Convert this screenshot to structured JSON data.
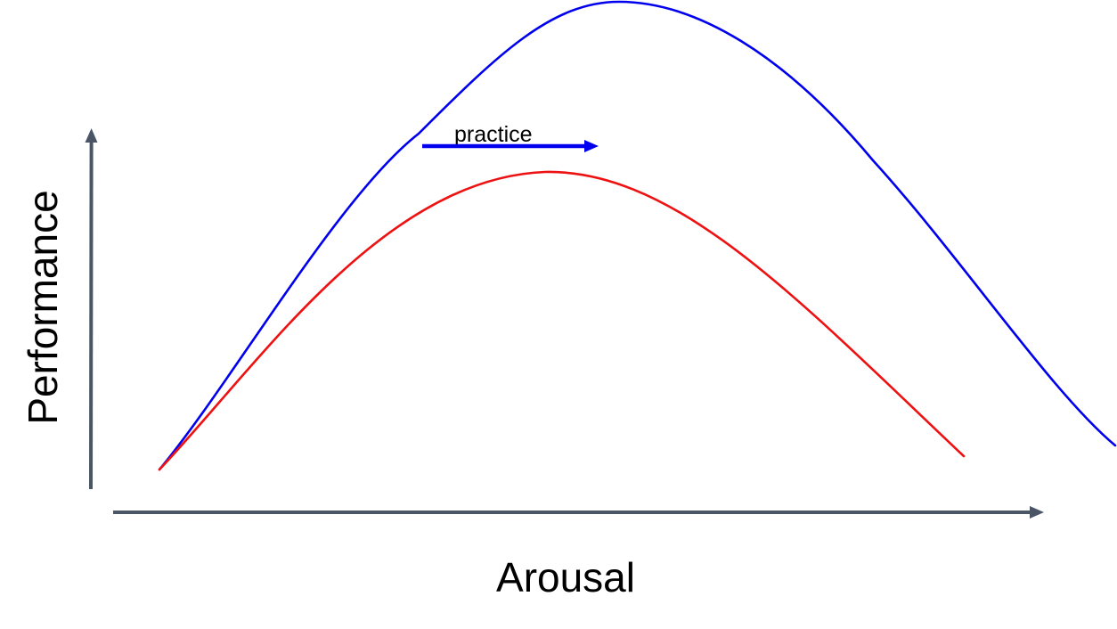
{
  "axes": {
    "x_label": "Arousal",
    "y_label": "Performance",
    "axis_color": "#4a5566"
  },
  "curves": [
    {
      "name": "",
      "color": "#0000ee"
    },
    {
      "name": "",
      "color": "#ee1111"
    }
  ],
  "annotation": {
    "label": "practice",
    "arrow_color": "#0000ee",
    "arrow_direction": "right"
  }
}
